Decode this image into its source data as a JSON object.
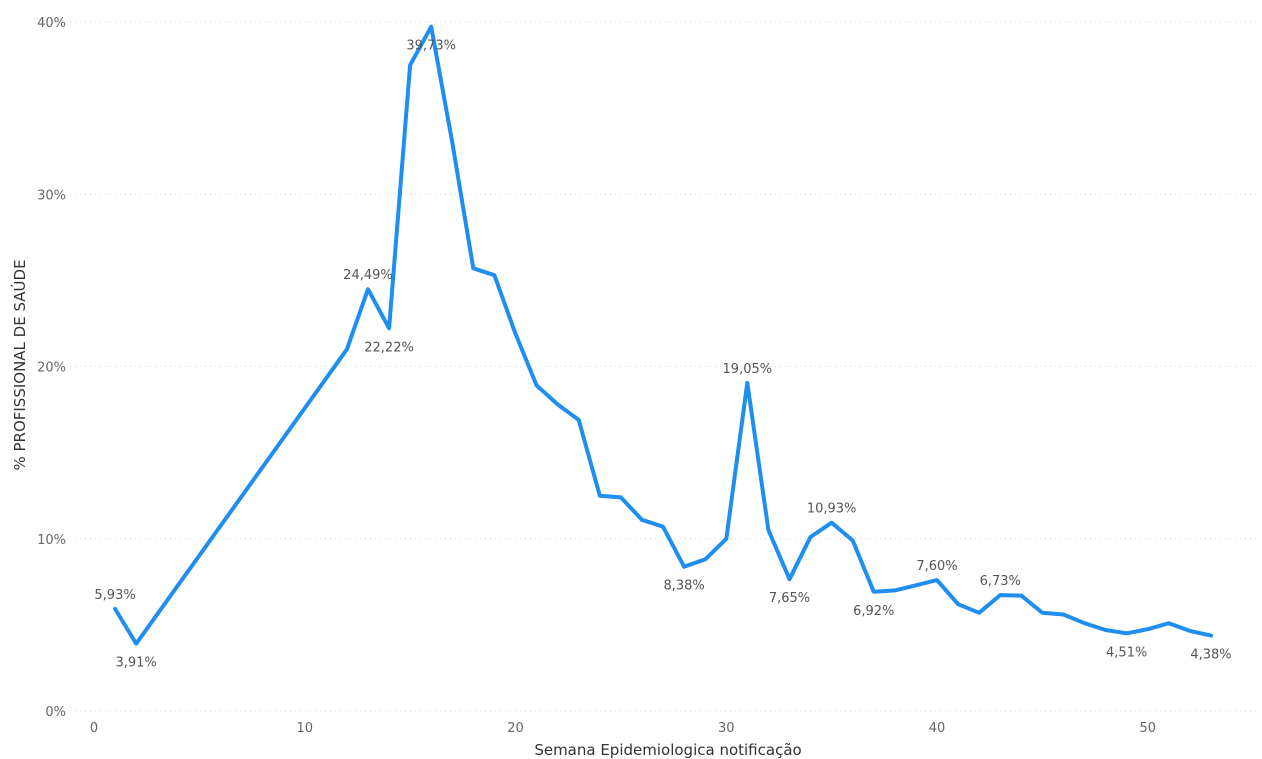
{
  "chart_data": {
    "type": "line",
    "title": "",
    "xlabel": "Semana Epidemiologica notificação",
    "ylabel": "% PROFISSIONAL DE SAÚDE",
    "xlim": [
      0,
      55
    ],
    "ylim": [
      0,
      40
    ],
    "grid": true,
    "x_ticks": [
      {
        "value": 0,
        "label": "0"
      },
      {
        "value": 10,
        "label": "10"
      },
      {
        "value": 20,
        "label": "20"
      },
      {
        "value": 30,
        "label": "30"
      },
      {
        "value": 40,
        "label": "40"
      },
      {
        "value": 50,
        "label": "50"
      }
    ],
    "y_ticks": [
      {
        "value": 0,
        "label": "0%"
      },
      {
        "value": 10,
        "label": "10%"
      },
      {
        "value": 20,
        "label": "20%"
      },
      {
        "value": 30,
        "label": "30%"
      },
      {
        "value": 40,
        "label": "40%"
      }
    ],
    "series": [
      {
        "color": "#1f8ef1",
        "points": [
          [
            1,
            5.93
          ],
          [
            2,
            3.91
          ],
          [
            12,
            21.0
          ],
          [
            13,
            24.49
          ],
          [
            14,
            22.22
          ],
          [
            15,
            37.5
          ],
          [
            16,
            39.73
          ],
          [
            17,
            33.0
          ],
          [
            18,
            25.7
          ],
          [
            19,
            25.3
          ],
          [
            20,
            21.9
          ],
          [
            21,
            18.9
          ],
          [
            22,
            17.8
          ],
          [
            23,
            16.9
          ],
          [
            24,
            12.5
          ],
          [
            25,
            12.4
          ],
          [
            26,
            11.1
          ],
          [
            27,
            10.7
          ],
          [
            28,
            8.38
          ],
          [
            29,
            8.8
          ],
          [
            30,
            10.0
          ],
          [
            31,
            19.05
          ],
          [
            32,
            10.5
          ],
          [
            33,
            7.65
          ],
          [
            34,
            10.1
          ],
          [
            35,
            10.93
          ],
          [
            36,
            9.9
          ],
          [
            37,
            6.92
          ],
          [
            38,
            7.0
          ],
          [
            39,
            7.3
          ],
          [
            40,
            7.6
          ],
          [
            41,
            6.2
          ],
          [
            42,
            5.7
          ],
          [
            43,
            6.73
          ],
          [
            44,
            6.7
          ],
          [
            45,
            5.7
          ],
          [
            46,
            5.6
          ],
          [
            47,
            5.1
          ],
          [
            48,
            4.7
          ],
          [
            49,
            4.51
          ],
          [
            50,
            4.75
          ],
          [
            51,
            5.1
          ],
          [
            52,
            4.65
          ],
          [
            53,
            4.38
          ]
        ]
      }
    ],
    "data_labels": [
      {
        "x": 1,
        "y": 5.93,
        "text": "5,93%",
        "position": "above"
      },
      {
        "x": 2,
        "y": 3.91,
        "text": "3,91%",
        "position": "below"
      },
      {
        "x": 13,
        "y": 24.49,
        "text": "24,49%",
        "position": "above"
      },
      {
        "x": 14,
        "y": 22.22,
        "text": "22,22%",
        "position": "below"
      },
      {
        "x": 16,
        "y": 39.73,
        "text": "39,73%",
        "position": "below"
      },
      {
        "x": 28,
        "y": 8.38,
        "text": "8,38%",
        "position": "below"
      },
      {
        "x": 31,
        "y": 19.05,
        "text": "19,05%",
        "position": "above"
      },
      {
        "x": 33,
        "y": 7.65,
        "text": "7,65%",
        "position": "below"
      },
      {
        "x": 35,
        "y": 10.93,
        "text": "10,93%",
        "position": "above"
      },
      {
        "x": 37,
        "y": 6.92,
        "text": "6,92%",
        "position": "below"
      },
      {
        "x": 40,
        "y": 7.6,
        "text": "7,60%",
        "position": "above"
      },
      {
        "x": 43,
        "y": 6.73,
        "text": "6,73%",
        "position": "above"
      },
      {
        "x": 49,
        "y": 4.51,
        "text": "4,51%",
        "position": "below"
      },
      {
        "x": 53,
        "y": 4.38,
        "text": "4,38%",
        "position": "below"
      }
    ]
  }
}
